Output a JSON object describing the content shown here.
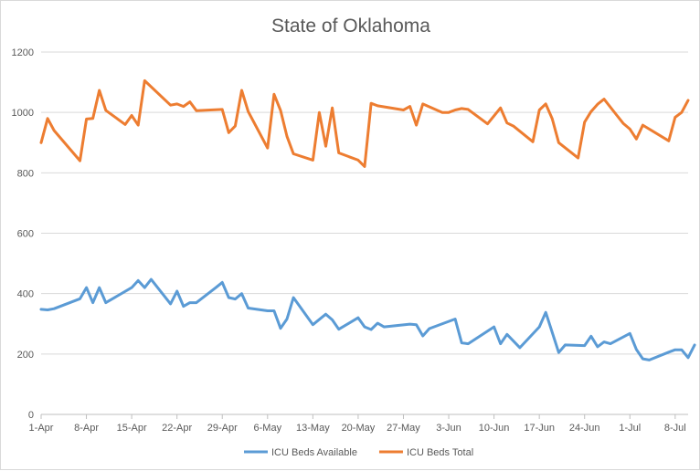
{
  "chart_data": {
    "type": "line",
    "title": "State of Oklahoma",
    "xlabel": "",
    "ylabel": "",
    "ylim": [
      0,
      1200
    ],
    "yticks": [
      0,
      200,
      400,
      600,
      800,
      1000,
      1200
    ],
    "xlim": [
      0,
      100
    ],
    "xticks": [
      {
        "day": 0,
        "label": "1-Apr"
      },
      {
        "day": 7,
        "label": "8-Apr"
      },
      {
        "day": 14,
        "label": "15-Apr"
      },
      {
        "day": 21,
        "label": "22-Apr"
      },
      {
        "day": 28,
        "label": "29-Apr"
      },
      {
        "day": 35,
        "label": "6-May"
      },
      {
        "day": 42,
        "label": "13-May"
      },
      {
        "day": 49,
        "label": "20-May"
      },
      {
        "day": 56,
        "label": "27-May"
      },
      {
        "day": 63,
        "label": "3-Jun"
      },
      {
        "day": 70,
        "label": "10-Jun"
      },
      {
        "day": 77,
        "label": "17-Jun"
      },
      {
        "day": 84,
        "label": "24-Jun"
      },
      {
        "day": 91,
        "label": "1-Jul"
      },
      {
        "day": 98,
        "label": "8-Jul"
      }
    ],
    "grid": true,
    "legend": "bottom",
    "series": [
      {
        "name": "ICU Beds Available",
        "color": "#5b9bd5",
        "points": [
          [
            0,
            348
          ],
          [
            1,
            346
          ],
          [
            2,
            350
          ],
          [
            6,
            383
          ],
          [
            7,
            420
          ],
          [
            8,
            370
          ],
          [
            9,
            420
          ],
          [
            10,
            370
          ],
          [
            14,
            420
          ],
          [
            15,
            443
          ],
          [
            16,
            420
          ],
          [
            17,
            447
          ],
          [
            20,
            366
          ],
          [
            21,
            408
          ],
          [
            22,
            358
          ],
          [
            23,
            370
          ],
          [
            24,
            370
          ],
          [
            27,
            420
          ],
          [
            28,
            437
          ],
          [
            29,
            387
          ],
          [
            30,
            382
          ],
          [
            31,
            400
          ],
          [
            32,
            352
          ],
          [
            35,
            343
          ],
          [
            36,
            343
          ],
          [
            37,
            285
          ],
          [
            38,
            316
          ],
          [
            39,
            387
          ],
          [
            42,
            297
          ],
          [
            44,
            332
          ],
          [
            45,
            313
          ],
          [
            46,
            282
          ],
          [
            49,
            320
          ],
          [
            50,
            290
          ],
          [
            51,
            281
          ],
          [
            52,
            302
          ],
          [
            53,
            290
          ],
          [
            57,
            299
          ],
          [
            58,
            297
          ],
          [
            59,
            260
          ],
          [
            60,
            284
          ],
          [
            64,
            316
          ],
          [
            65,
            237
          ],
          [
            66,
            234
          ],
          [
            70,
            290
          ],
          [
            71,
            234
          ],
          [
            72,
            265
          ],
          [
            74,
            221
          ],
          [
            77,
            290
          ],
          [
            78,
            338
          ],
          [
            80,
            205
          ],
          [
            81,
            230
          ],
          [
            84,
            228
          ],
          [
            85,
            259
          ],
          [
            86,
            224
          ],
          [
            87,
            240
          ],
          [
            88,
            234
          ],
          [
            91,
            268
          ],
          [
            92,
            215
          ],
          [
            93,
            184
          ],
          [
            94,
            180
          ],
          [
            97,
            206
          ],
          [
            98,
            214
          ],
          [
            99,
            214
          ],
          [
            100,
            188
          ],
          [
            101,
            230
          ]
        ]
      },
      {
        "name": "ICU Beds Total",
        "color": "#ed7d31",
        "points": [
          [
            0,
            900
          ],
          [
            1,
            980
          ],
          [
            2,
            940
          ],
          [
            6,
            840
          ],
          [
            7,
            978
          ],
          [
            8,
            980
          ],
          [
            9,
            1073
          ],
          [
            10,
            1007
          ],
          [
            13,
            960
          ],
          [
            14,
            990
          ],
          [
            15,
            958
          ],
          [
            16,
            1105
          ],
          [
            20,
            1024
          ],
          [
            21,
            1028
          ],
          [
            22,
            1020
          ],
          [
            23,
            1035
          ],
          [
            24,
            1006
          ],
          [
            28,
            1010
          ],
          [
            29,
            933
          ],
          [
            30,
            955
          ],
          [
            31,
            1073
          ],
          [
            32,
            1003
          ],
          [
            35,
            882
          ],
          [
            36,
            1060
          ],
          [
            37,
            1007
          ],
          [
            38,
            921
          ],
          [
            39,
            863
          ],
          [
            42,
            842
          ],
          [
            43,
            1000
          ],
          [
            44,
            888
          ],
          [
            45,
            1015
          ],
          [
            46,
            866
          ],
          [
            49,
            842
          ],
          [
            50,
            821
          ],
          [
            51,
            1030
          ],
          [
            52,
            1022
          ],
          [
            56,
            1008
          ],
          [
            57,
            1020
          ],
          [
            58,
            958
          ],
          [
            59,
            1028
          ],
          [
            62,
            1000
          ],
          [
            63,
            1000
          ],
          [
            64,
            1008
          ],
          [
            65,
            1013
          ],
          [
            66,
            1010
          ],
          [
            69,
            962
          ],
          [
            71,
            1015
          ],
          [
            72,
            965
          ],
          [
            73,
            955
          ],
          [
            76,
            903
          ],
          [
            77,
            1008
          ],
          [
            78,
            1028
          ],
          [
            79,
            979
          ],
          [
            80,
            900
          ],
          [
            83,
            849
          ],
          [
            84,
            968
          ],
          [
            85,
            1003
          ],
          [
            86,
            1027
          ],
          [
            87,
            1044
          ],
          [
            89,
            990
          ],
          [
            90,
            963
          ],
          [
            91,
            945
          ],
          [
            92,
            912
          ],
          [
            93,
            958
          ],
          [
            97,
            906
          ],
          [
            98,
            984
          ],
          [
            99,
            1000
          ],
          [
            100,
            1040
          ]
        ]
      }
    ]
  }
}
